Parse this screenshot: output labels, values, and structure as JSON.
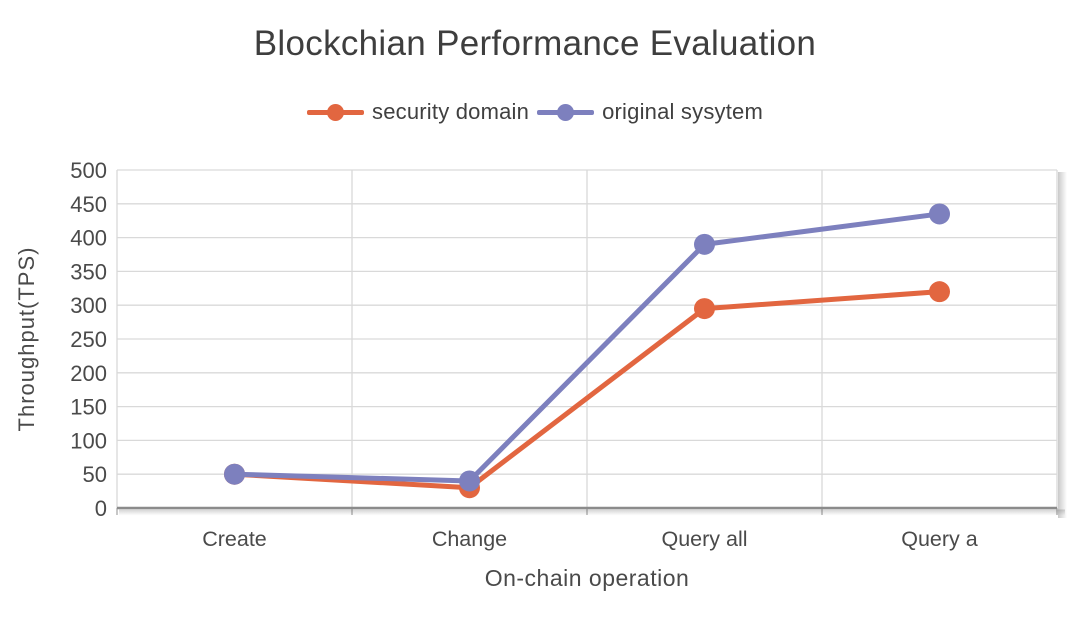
{
  "page": {
    "background": "#ffffff"
  },
  "chart": {
    "title": "Blockchian Performance Evaluation",
    "x_axis_title": "On-chain operation",
    "y_axis_title": "Throughput(TPS)"
  },
  "chart_data": {
    "type": "line",
    "title": "Blockchian Performance Evaluation",
    "xlabel": "On-chain operation",
    "ylabel": "Throughput(TPS)",
    "categories": [
      "Create",
      "Change",
      "Query all",
      "Query a"
    ],
    "series": [
      {
        "name": "security domain",
        "color": "#E26640",
        "values": [
          50,
          30,
          295,
          320
        ]
      },
      {
        "name": "original sysytem",
        "color": "#7D80BE",
        "values": [
          50,
          40,
          390,
          435
        ]
      }
    ],
    "ylim": [
      0,
      500
    ],
    "y_ticks": [
      0,
      50,
      100,
      150,
      200,
      250,
      300,
      350,
      400,
      450,
      500
    ],
    "grid": true,
    "legend_position": "top"
  },
  "colors": {
    "grid_line": "#D9D9D9",
    "axis_line": "#8B8B8B",
    "tick_mark": "#A9A9A9",
    "title_text": "#3E3E3E",
    "axis_text": "#4A4A4A",
    "legend_text": "#404040"
  }
}
